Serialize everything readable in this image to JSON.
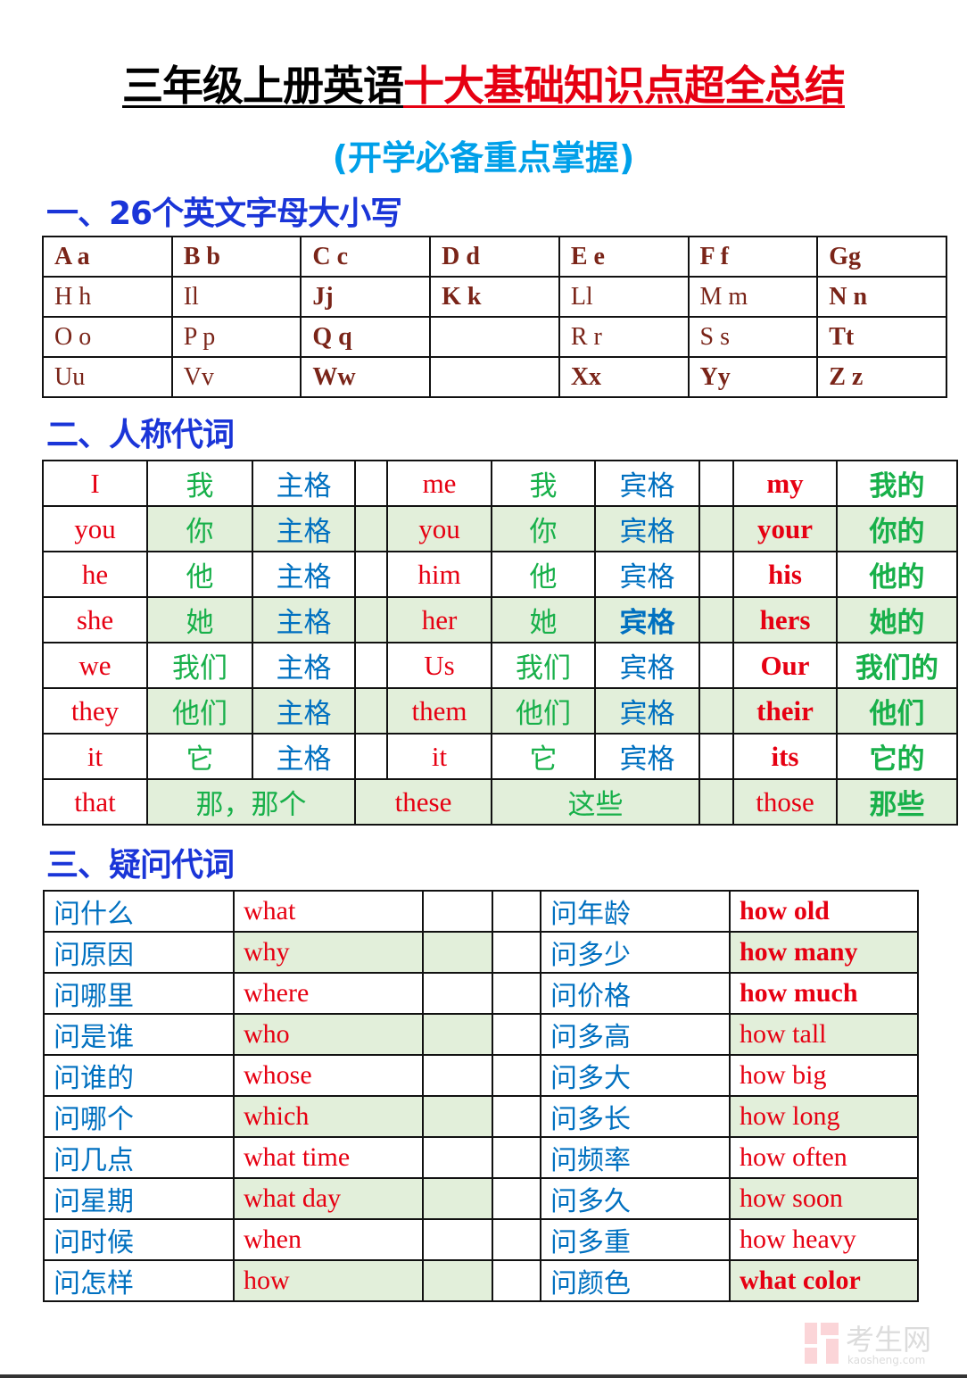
{
  "title": {
    "part1": "三年级上册英语",
    "part2": "十大基础知识点超全总结"
  },
  "subtitle": "(开学必备重点掌握)",
  "sections": {
    "s1": "一、26个英文字母大小写",
    "s2": "二、人称代词",
    "s3": "三、疑问代词"
  },
  "colors": {
    "title_red": "#e60012",
    "subtitle": "#00a0e9",
    "heading": "#1a35d8",
    "green_fill": "#e2efda",
    "english_red": "#e60012",
    "chinese_green": "#18b04a",
    "case_blue": "#0070c0"
  },
  "letters": [
    [
      {
        "t": "A a",
        "b": true
      },
      {
        "t": "B b",
        "b": true
      },
      {
        "t": "C c",
        "b": true
      },
      {
        "t": "D d",
        "b": true
      },
      {
        "t": "E e",
        "b": true
      },
      {
        "t": "F f",
        "b": true
      },
      {
        "t": "Gg",
        "b": true
      }
    ],
    [
      {
        "t": "H h",
        "b": false
      },
      {
        "t": "Il",
        "b": false
      },
      {
        "t": "Jj",
        "b": true
      },
      {
        "t": "K k",
        "b": true
      },
      {
        "t": "Ll",
        "b": false
      },
      {
        "t": "M m",
        "b": false
      },
      {
        "t": "N n",
        "b": true
      }
    ],
    [
      {
        "t": "O  o",
        "b": false
      },
      {
        "t": "P p",
        "b": false
      },
      {
        "t": "Q  q",
        "b": true
      },
      {
        "t": "",
        "b": false
      },
      {
        "t": "R r",
        "b": false
      },
      {
        "t": "S  s",
        "b": false
      },
      {
        "t": "Tt",
        "b": true
      }
    ],
    [
      {
        "t": "Uu",
        "b": false
      },
      {
        "t": "Vv",
        "b": false
      },
      {
        "t": "Ww",
        "b": true
      },
      {
        "t": "",
        "b": false
      },
      {
        "t": "Xx",
        "b": true
      },
      {
        "t": "Yy",
        "b": true
      },
      {
        "t": "Z z",
        "b": true
      }
    ]
  ],
  "pronouns": [
    {
      "subj": "I",
      "subj_zh": "我",
      "subj_case": "主格",
      "obj": "me",
      "obj_zh": "我",
      "obj_case": "宾格",
      "poss": "my",
      "poss_zh": "我的"
    },
    {
      "subj": "you",
      "subj_zh": "你",
      "subj_case": "主格",
      "obj": "you",
      "obj_zh": "你",
      "obj_case": "宾格",
      "poss": "your",
      "poss_zh": "你的"
    },
    {
      "subj": "he",
      "subj_zh": "他",
      "subj_case": "主格",
      "obj": "him",
      "obj_zh": "他",
      "obj_case": "宾格",
      "poss": "his",
      "poss_zh": "他的"
    },
    {
      "subj": "she",
      "subj_zh": "她",
      "subj_case": "主格",
      "obj": "her",
      "obj_zh": "她",
      "obj_case": "宾格",
      "poss": "hers",
      "poss_zh": "她的"
    },
    {
      "subj": "we",
      "subj_zh": "我们",
      "subj_case": "主格",
      "obj": "Us",
      "obj_zh": "我们",
      "obj_case": "宾格",
      "poss": "Our",
      "poss_zh": "我们的"
    },
    {
      "subj": "they",
      "subj_zh": "他们",
      "subj_case": "主格",
      "obj": "them",
      "obj_zh": "他们",
      "obj_case": "宾格",
      "poss": "their",
      "poss_zh": "他们"
    },
    {
      "subj": "it",
      "subj_zh": "它",
      "subj_case": "主格",
      "obj": "it",
      "obj_zh": "它",
      "obj_case": "宾格",
      "poss": "its",
      "poss_zh": "它的"
    }
  ],
  "demonstratives": {
    "that": "that",
    "that_zh": "那，那个",
    "these": "these",
    "these_zh": "这些",
    "those": "those",
    "those_zh": "那些"
  },
  "questions": [
    {
      "zh": "问什么",
      "en": "what",
      "zh2": "问年龄",
      "en2": "how old",
      "b2": true
    },
    {
      "zh": "问原因",
      "en": "why",
      "zh2": "问多少",
      "en2": "how many",
      "b2": true
    },
    {
      "zh": "问哪里",
      "en": "where",
      "zh2": "问价格",
      "en2": "how much",
      "b2": true
    },
    {
      "zh": "问是谁",
      "en": "who",
      "zh2": "问多高",
      "en2": "how  tall",
      "b2": false
    },
    {
      "zh": "问谁的",
      "en": "whose",
      "zh2": "问多大",
      "en2": "how big",
      "b2": false
    },
    {
      "zh": "问哪个",
      "en": "which",
      "zh2": "问多长",
      "en2": "how  long",
      "b2": false
    },
    {
      "zh": "问几点",
      "en": "what  time",
      "zh2": "问频率",
      "en2": "how often",
      "b2": false
    },
    {
      "zh": "问星期",
      "en": "what  day",
      "zh2": "问多久",
      "en2": "how  soon",
      "b2": false
    },
    {
      "zh": "问时候",
      "en": "when",
      "zh2": "问多重",
      "en2": "how heavy",
      "b2": false
    },
    {
      "zh": "问怎样",
      "en": "how",
      "zh2": "问颜色",
      "en2": "what color",
      "b2": true
    }
  ],
  "watermark": {
    "text": "考生网",
    "domain": "kaosheng.com"
  }
}
